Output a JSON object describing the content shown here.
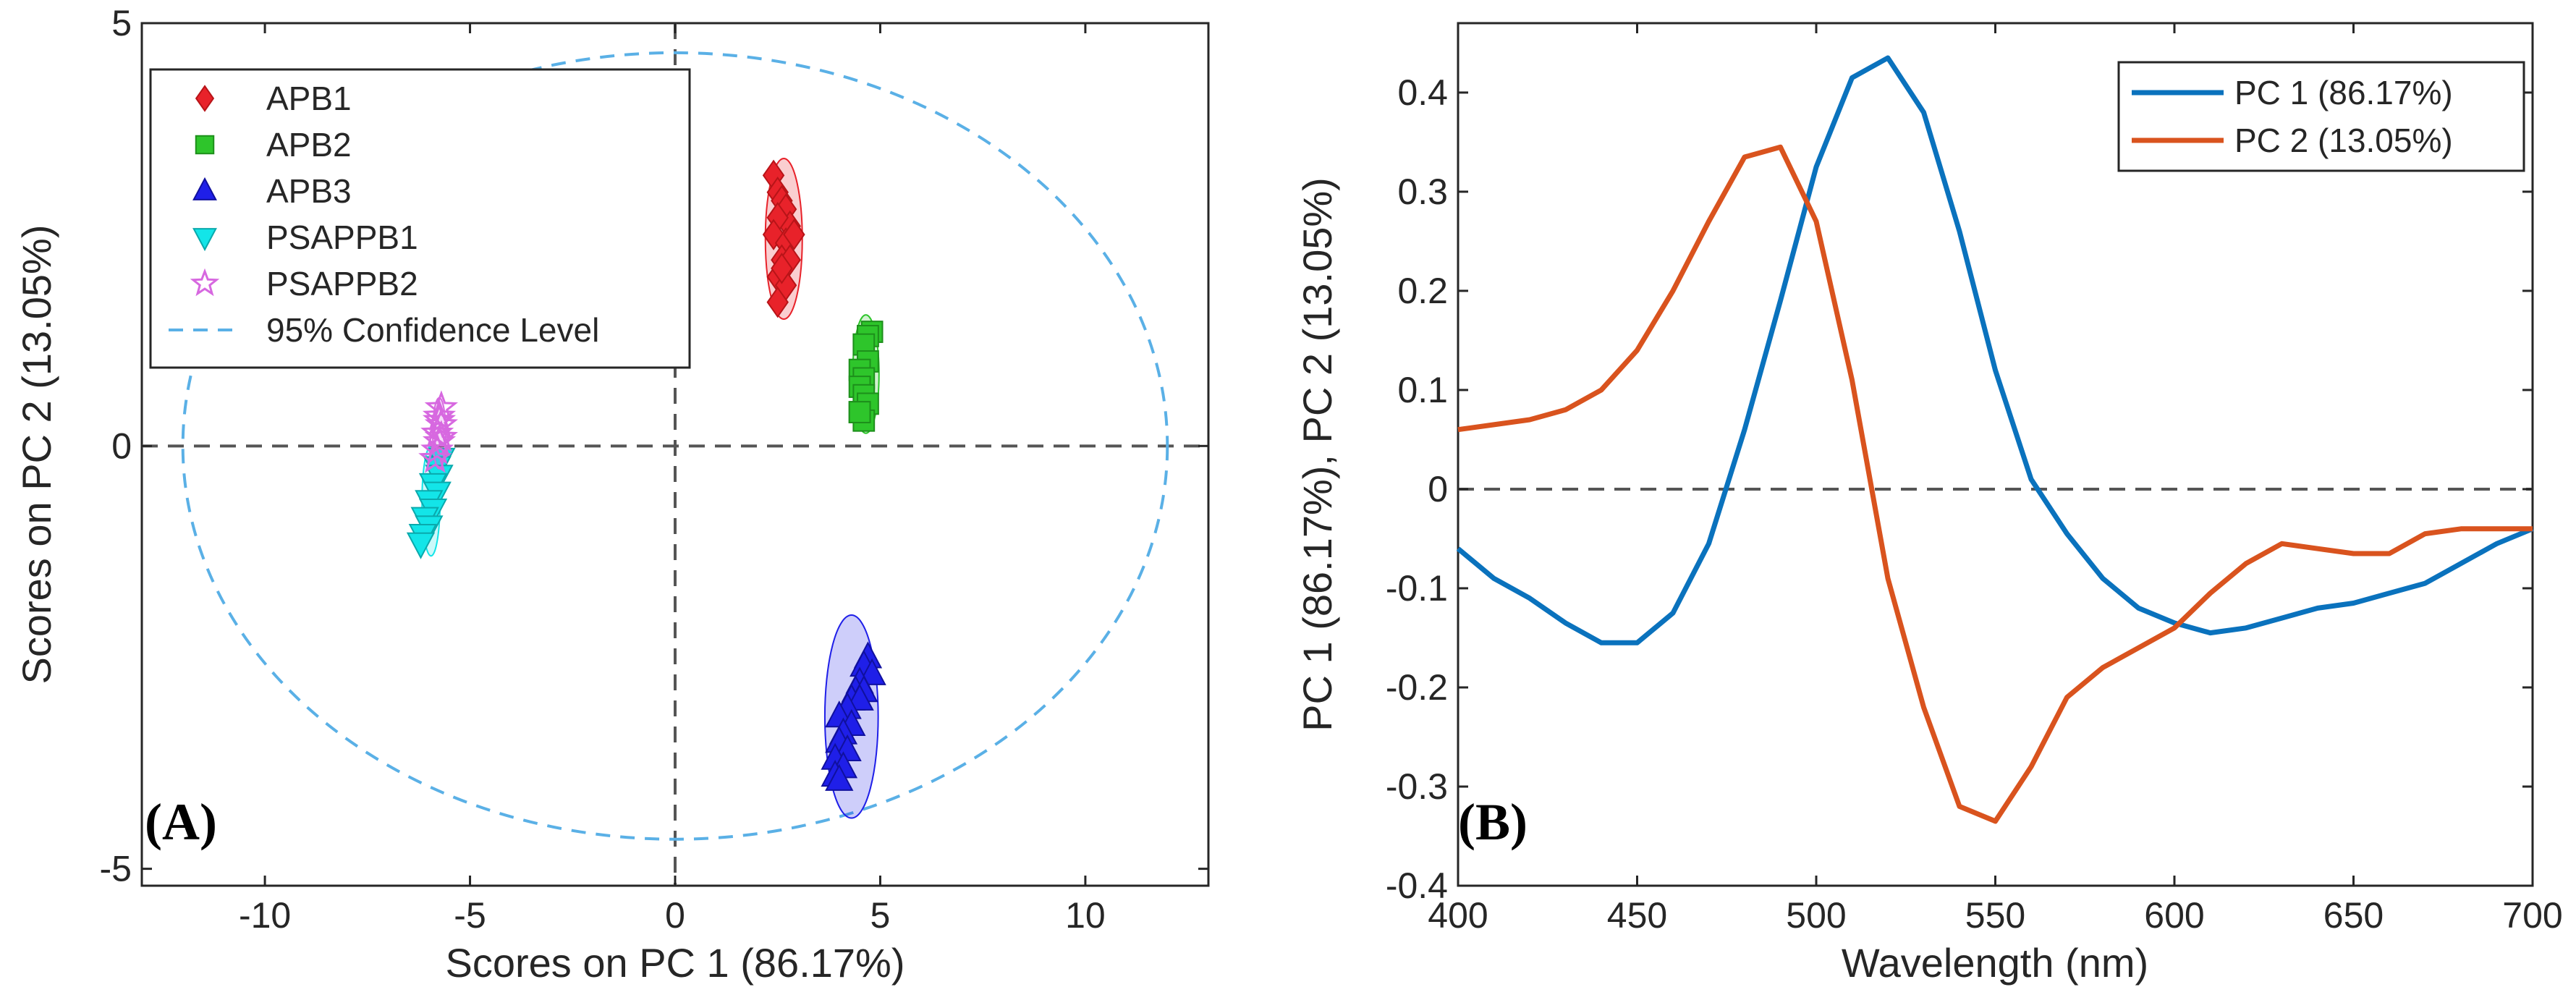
{
  "chart_data": [
    {
      "panel": "(A)",
      "type": "scatter",
      "xlabel": "Scores on PC 1 (86.17%)",
      "ylabel": "Scores on PC 2 (13.05%)",
      "xlim": [
        -13,
        13
      ],
      "ylim": [
        -5.2,
        5
      ],
      "xticks": [
        -10,
        -5,
        0,
        5,
        10
      ],
      "yticks": [
        -5,
        0,
        5
      ],
      "tick_labels_x": [
        "-10",
        "-5",
        "0",
        "5",
        "10"
      ],
      "tick_labels_y": [
        "-5",
        "0",
        "5"
      ],
      "legend_position": "top-left",
      "confidence_ellipse": {
        "label": "95% Confidence Level",
        "center": [
          0,
          0
        ],
        "semi_x": 12,
        "semi_y": 4.65,
        "color": "#5ab0e6"
      },
      "series": [
        {
          "name": "APB1",
          "marker": "diamond",
          "color": "#e8222a",
          "points": [
            [
              2.4,
              3.2
            ],
            [
              2.5,
              3.0
            ],
            [
              2.6,
              2.9
            ],
            [
              2.7,
              2.8
            ],
            [
              2.8,
              2.6
            ],
            [
              2.5,
              2.7
            ],
            [
              2.4,
              2.5
            ],
            [
              2.7,
              2.4
            ],
            [
              2.9,
              2.5
            ],
            [
              2.6,
              2.2
            ],
            [
              2.5,
              2.0
            ],
            [
              2.8,
              2.2
            ],
            [
              2.7,
              1.9
            ],
            [
              2.5,
              1.7
            ],
            [
              2.6,
              2.1
            ]
          ],
          "ellipse": {
            "center": [
              2.65,
              2.45
            ],
            "rx": 0.45,
            "ry": 0.95
          }
        },
        {
          "name": "APB2",
          "marker": "square",
          "color": "#2ec52b",
          "points": [
            [
              4.8,
              1.35
            ],
            [
              4.7,
              1.3
            ],
            [
              4.6,
              1.2
            ],
            [
              4.7,
              1.0
            ],
            [
              4.5,
              0.9
            ],
            [
              4.6,
              0.8
            ],
            [
              4.5,
              0.7
            ],
            [
              4.6,
              0.6
            ],
            [
              4.7,
              0.5
            ],
            [
              4.5,
              0.4
            ],
            [
              4.6,
              0.3
            ],
            [
              4.5,
              0.4
            ]
          ],
          "ellipse": {
            "center": [
              4.65,
              0.85
            ],
            "rx": 0.32,
            "ry": 0.7
          }
        },
        {
          "name": "APB3",
          "marker": "triangle-up",
          "color": "#1f1fe8",
          "points": [
            [
              4.7,
              -2.5
            ],
            [
              4.6,
              -2.6
            ],
            [
              4.8,
              -2.7
            ],
            [
              4.5,
              -2.8
            ],
            [
              4.4,
              -2.9
            ],
            [
              4.6,
              -2.9
            ],
            [
              4.3,
              -3.0
            ],
            [
              4.5,
              -3.0
            ],
            [
              4.2,
              -3.1
            ],
            [
              4.0,
              -3.2
            ],
            [
              4.3,
              -3.3
            ],
            [
              4.1,
              -3.4
            ],
            [
              4.0,
              -3.5
            ],
            [
              4.2,
              -3.6
            ],
            [
              3.9,
              -3.7
            ],
            [
              4.1,
              -3.8
            ],
            [
              3.9,
              -3.9
            ],
            [
              4.0,
              -3.95
            ]
          ],
          "ellipse": {
            "center": [
              4.3,
              -3.2
            ],
            "rx": 0.65,
            "ry": 1.2
          }
        },
        {
          "name": "PSAPPB1",
          "marker": "triangle-down",
          "color": "#13e5e8",
          "points": [
            [
              -5.7,
              -0.15
            ],
            [
              -5.8,
              -0.25
            ],
            [
              -5.75,
              -0.35
            ],
            [
              -5.9,
              -0.45
            ],
            [
              -5.8,
              -0.55
            ],
            [
              -6.0,
              -0.65
            ],
            [
              -5.9,
              -0.75
            ],
            [
              -6.1,
              -0.85
            ],
            [
              -6.0,
              -0.95
            ],
            [
              -6.15,
              -1.05
            ],
            [
              -6.2,
              -1.15
            ]
          ],
          "ellipse": {
            "center": [
              -5.95,
              -0.65
            ],
            "rx": 0.22,
            "ry": 0.65
          }
        },
        {
          "name": "PSAPPB2",
          "marker": "star",
          "color": "#d768e0",
          "points": [
            [
              -5.7,
              0.45
            ],
            [
              -5.75,
              0.35
            ],
            [
              -5.7,
              0.25
            ],
            [
              -5.8,
              0.15
            ],
            [
              -5.75,
              0.05
            ],
            [
              -5.8,
              -0.05
            ],
            [
              -5.85,
              -0.15
            ],
            [
              -5.75,
              0.3
            ],
            [
              -5.7,
              0.1
            ]
          ],
          "ellipse": {
            "center": [
              -5.75,
              0.15
            ],
            "rx": 0.16,
            "ry": 0.42
          }
        }
      ]
    },
    {
      "panel": "(B)",
      "type": "line",
      "xlabel": "Wavelength (nm)",
      "ylabel": "PC 1 (86.17%), PC 2 (13.05%)",
      "xlim": [
        400,
        700
      ],
      "ylim": [
        -0.4,
        0.47
      ],
      "xticks": [
        400,
        450,
        500,
        550,
        600,
        650,
        700
      ],
      "yticks": [
        -0.4,
        -0.3,
        -0.2,
        -0.1,
        0,
        0.1,
        0.2,
        0.3,
        0.4
      ],
      "tick_labels_x": [
        "400",
        "450",
        "500",
        "550",
        "600",
        "650",
        "700"
      ],
      "tick_labels_y": [
        "-0.4",
        "-0.3",
        "-0.2",
        "-0.1",
        "0",
        "0.1",
        "0.2",
        "0.3",
        "0.4"
      ],
      "legend_position": "top-right",
      "x": [
        400,
        410,
        420,
        430,
        440,
        450,
        460,
        470,
        480,
        490,
        500,
        510,
        520,
        530,
        540,
        550,
        560,
        570,
        580,
        590,
        600,
        610,
        620,
        630,
        640,
        650,
        660,
        670,
        680,
        690,
        700
      ],
      "series": [
        {
          "name": "PC 1 (86.17%)",
          "color": "#0a72bd",
          "values": [
            -0.06,
            -0.09,
            -0.11,
            -0.135,
            -0.155,
            -0.155,
            -0.125,
            -0.055,
            0.06,
            0.19,
            0.325,
            0.415,
            0.435,
            0.38,
            0.26,
            0.12,
            0.01,
            -0.045,
            -0.09,
            -0.12,
            -0.135,
            -0.145,
            -0.14,
            -0.13,
            -0.12,
            -0.115,
            -0.105,
            -0.095,
            -0.075,
            -0.055,
            -0.04
          ]
        },
        {
          "name": "PC 2 (13.05%)",
          "color": "#d9531e",
          "values": [
            0.06,
            0.065,
            0.07,
            0.08,
            0.1,
            0.14,
            0.2,
            0.27,
            0.335,
            0.345,
            0.27,
            0.11,
            -0.09,
            -0.22,
            -0.32,
            -0.335,
            -0.28,
            -0.21,
            -0.18,
            -0.16,
            -0.14,
            -0.105,
            -0.075,
            -0.055,
            -0.06,
            -0.065,
            -0.065,
            -0.045,
            -0.04,
            -0.04,
            -0.04
          ]
        }
      ]
    }
  ]
}
